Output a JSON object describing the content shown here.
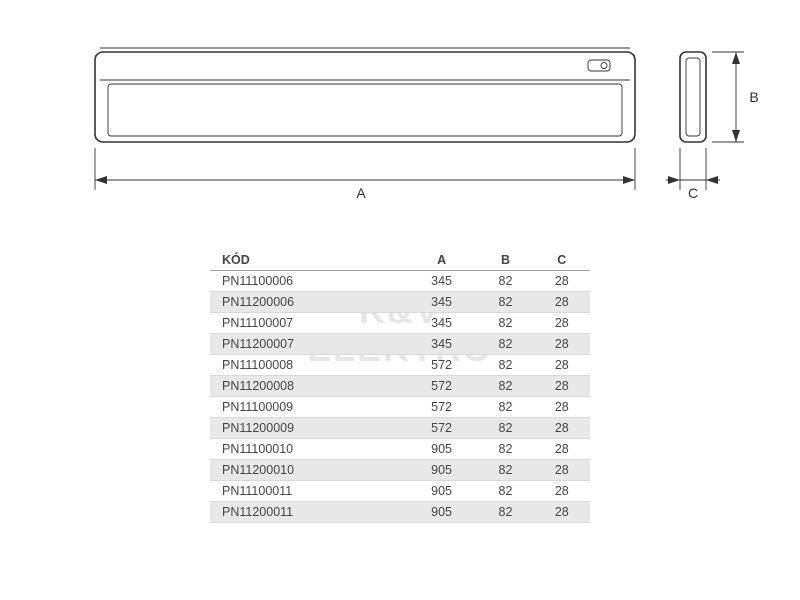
{
  "watermark": {
    "line1": "K&V",
    "line2": "ELEKTRO",
    "color": "#e6e6e6",
    "fontsize": 36
  },
  "diagram": {
    "stroke_color": "#333333",
    "line_thin": 0.9,
    "line_thick": 1.6,
    "label_fontsize": 14,
    "dims": {
      "A": "A",
      "B": "B",
      "C": "C"
    }
  },
  "table": {
    "header_bg": "#ffffff",
    "alt_row_bg": "#e8e8e8",
    "row_border": "#d9d9d9",
    "header_border": "#a0a0a0",
    "text_color": "#454545",
    "fontsize": 12.5,
    "columns": [
      "KÓD",
      "A",
      "B",
      "C"
    ],
    "rows": [
      [
        "PN11100006",
        "345",
        "82",
        "28"
      ],
      [
        "PN11200006",
        "345",
        "82",
        "28"
      ],
      [
        "PN11100007",
        "345",
        "82",
        "28"
      ],
      [
        "PN11200007",
        "345",
        "82",
        "28"
      ],
      [
        "PN11100008",
        "572",
        "82",
        "28"
      ],
      [
        "PN11200008",
        "572",
        "82",
        "28"
      ],
      [
        "PN11100009",
        "572",
        "82",
        "28"
      ],
      [
        "PN11200009",
        "572",
        "82",
        "28"
      ],
      [
        "PN11100010",
        "905",
        "82",
        "28"
      ],
      [
        "PN11200010",
        "905",
        "82",
        "28"
      ],
      [
        "PN11100011",
        "905",
        "82",
        "28"
      ],
      [
        "PN11200011",
        "905",
        "82",
        "28"
      ]
    ]
  }
}
